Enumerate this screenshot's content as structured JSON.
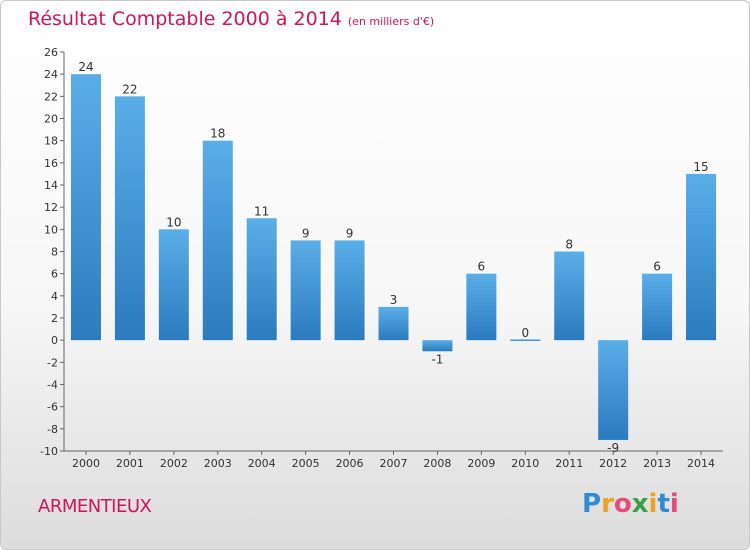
{
  "header": {
    "title": "Résultat Comptable 2000 à 2014",
    "subtitle": "(en milliers d'€)"
  },
  "footer": {
    "commune": "ARMENTIEUX",
    "logo_letters": [
      "P",
      "r",
      "o",
      "x",
      "i",
      "t",
      "i"
    ],
    "logo_colors": [
      "#2e8bd6",
      "#f0a020",
      "#e84a7a",
      "#3aa04a",
      "#f0a020",
      "#2e8bd6",
      "#e84a7a"
    ]
  },
  "chart_data": {
    "type": "bar",
    "categories": [
      "2000",
      "2001",
      "2002",
      "2003",
      "2004",
      "2005",
      "2006",
      "2007",
      "2008",
      "2009",
      "2010",
      "2011",
      "2012",
      "2013",
      "2014"
    ],
    "values": [
      24,
      22,
      10,
      18,
      11,
      9,
      9,
      3,
      -1,
      6,
      0,
      8,
      -9,
      6,
      15
    ],
    "data_labels": [
      "24",
      "22",
      "10",
      "18",
      "11",
      "9",
      "9",
      "3",
      "-1",
      "6",
      "0",
      "8",
      "-9",
      "6",
      "15"
    ],
    "ylim": [
      -10,
      26
    ],
    "yticks": [
      -10,
      -8,
      -6,
      -4,
      -2,
      0,
      2,
      4,
      6,
      8,
      10,
      12,
      14,
      16,
      18,
      20,
      22,
      24,
      26
    ],
    "grid": false,
    "colors": {
      "bar_top": "#5aaee8",
      "bar_bottom": "#2a7bbf"
    }
  }
}
